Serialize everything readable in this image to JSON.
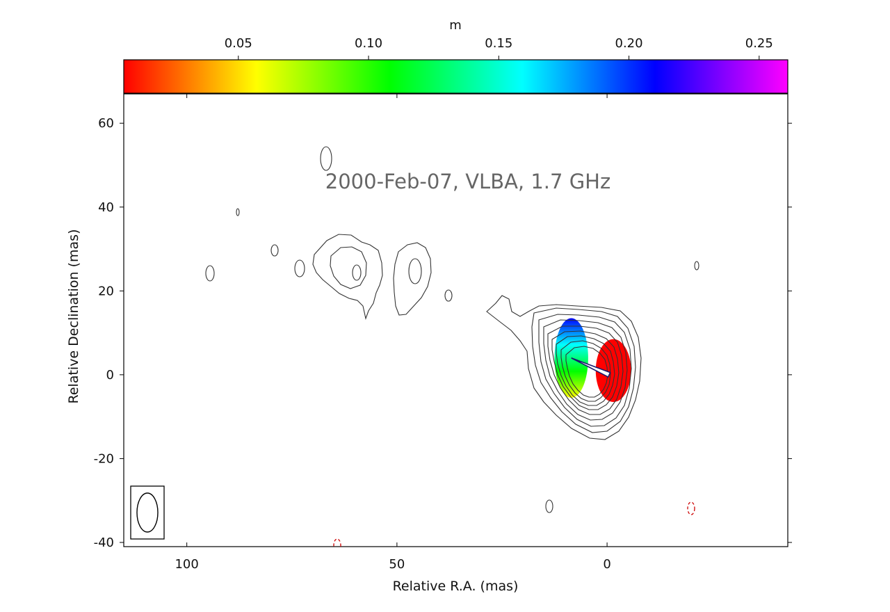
{
  "chart_data": {
    "type": "contour",
    "title": "2000-Feb-07, VLBA, 1.7 GHz",
    "xlabel": "Relative R.A. (mas)",
    "ylabel": "Relative Declination (mas)",
    "x_ticks": [
      100,
      50,
      0
    ],
    "y_ticks": [
      60,
      40,
      20,
      0,
      -20,
      -40
    ],
    "xlim": [
      115,
      -43
    ],
    "ylim": [
      -41,
      67
    ],
    "x_inverted": true,
    "colorbar": {
      "label": "m",
      "ticks": [
        "0.05",
        "0.10",
        "0.15",
        "0.20",
        "0.25"
      ],
      "tick_values": [
        0.05,
        0.1,
        0.15,
        0.2,
        0.25
      ],
      "range": [
        0.006,
        0.261
      ],
      "colormap": [
        "#ff0000",
        "#ff8000",
        "#ffff00",
        "#80ff00",
        "#00ff00",
        "#00ff80",
        "#00ffff",
        "#0080ff",
        "#0000ff",
        "#8000ff",
        "#ff00ff"
      ]
    },
    "polarization_regions": [
      {
        "name": "core",
        "center": [
          -1.5,
          1.0
        ],
        "half_width": 4.2,
        "half_height": 7.5,
        "m": 0.006
      },
      {
        "name": "jet",
        "center": [
          8.5,
          4.0
        ],
        "half_width": 4.0,
        "half_height": 9.5,
        "m_range": [
          0.05,
          0.22
        ]
      }
    ],
    "evpa_vector": {
      "from": [
        -0.5,
        0.0
      ],
      "to": [
        8.5,
        4.0
      ]
    },
    "beam": {
      "center": [
        109,
        -33
      ],
      "major": 9.5,
      "minor": 5.0,
      "pa_deg": 0
    },
    "contour_color": "#333333",
    "negative_contour_color": "#cc0000"
  }
}
